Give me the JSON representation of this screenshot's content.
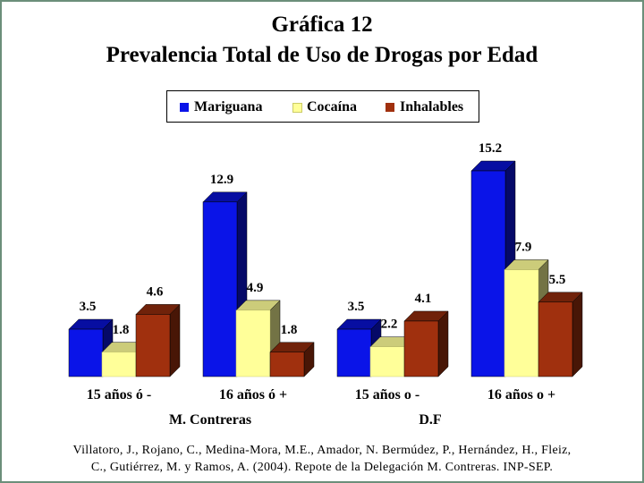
{
  "chart_data": {
    "type": "bar",
    "title": "Gráfica 12",
    "subtitle": "Prevalencia Total de Uso de Drogas por Edad",
    "categories": [
      "15 años ó -",
      "16 años ó +",
      "15 años o -",
      "16 años o +"
    ],
    "groups": [
      {
        "label": "M. Contreras",
        "categories": [
          0,
          1
        ]
      },
      {
        "label": "D.F",
        "categories": [
          2,
          3
        ]
      }
    ],
    "series": [
      {
        "name": "Mariguana",
        "color": "#0a14e8",
        "values": [
          3.5,
          12.9,
          3.5,
          15.2
        ]
      },
      {
        "name": "Cocaína",
        "color": "#ffff99",
        "values": [
          1.8,
          4.9,
          2.2,
          7.9
        ]
      },
      {
        "name": "Inhalables",
        "color": "#a0300e",
        "values": [
          4.6,
          1.8,
          4.1,
          5.5
        ]
      }
    ],
    "data_label_texts": [
      [
        "3.5",
        "12.9",
        "3.5",
        "15.2"
      ],
      [
        "1.8",
        "4.9",
        "2.2",
        "7.9"
      ],
      [
        "4.6",
        "1.8",
        "4.1",
        "5.5"
      ]
    ],
    "ylim": [
      0,
      15.2
    ],
    "legend_position": "top-center",
    "grid": false,
    "bar_style": "3d"
  },
  "citation": {
    "line1": "Villatoro, J., Rojano, C., Medina-Mora, M.E., Amador, N. Bermúdez, P., Hernández, H., Fleiz,",
    "line2": "C., Gutiérrez, M. y Ramos, A. (2004). Repote de la Delegación M. Contreras. INP-SEP."
  }
}
